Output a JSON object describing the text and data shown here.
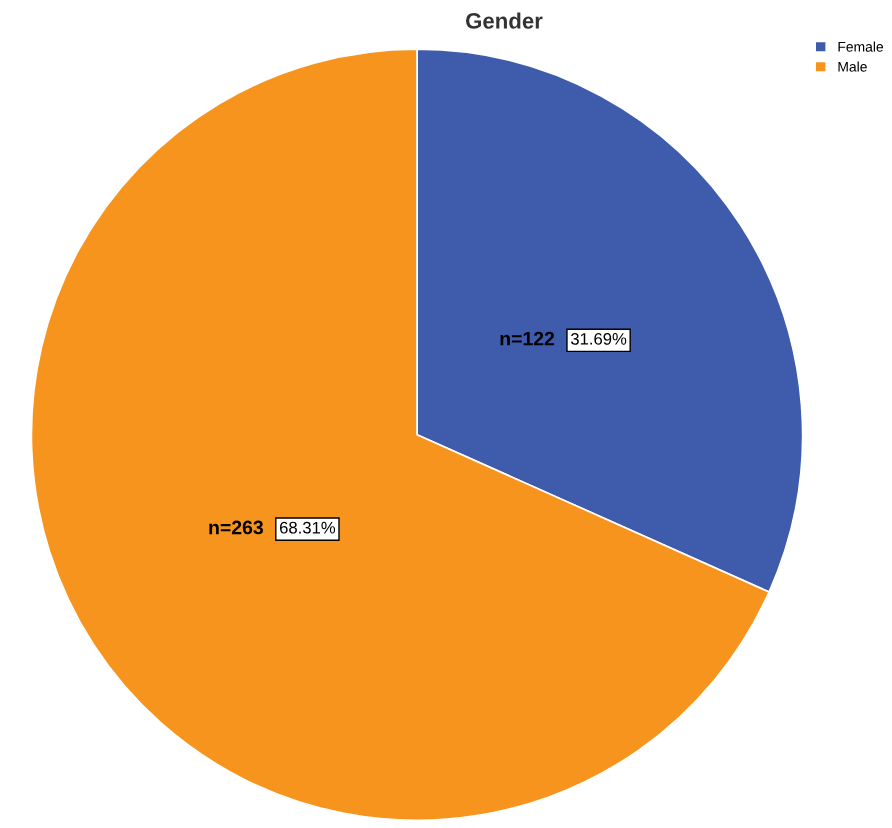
{
  "chart_data": {
    "type": "pie",
    "title": "Gender",
    "categories": [
      "Female",
      "Male"
    ],
    "values": [
      122,
      263
    ],
    "colors": [
      "#3f5bab",
      "#f7941d"
    ],
    "value_labels": [
      "n=122",
      "n=263"
    ],
    "annotations": [
      "31.69%",
      "68.31%"
    ],
    "legend": "top right"
  }
}
